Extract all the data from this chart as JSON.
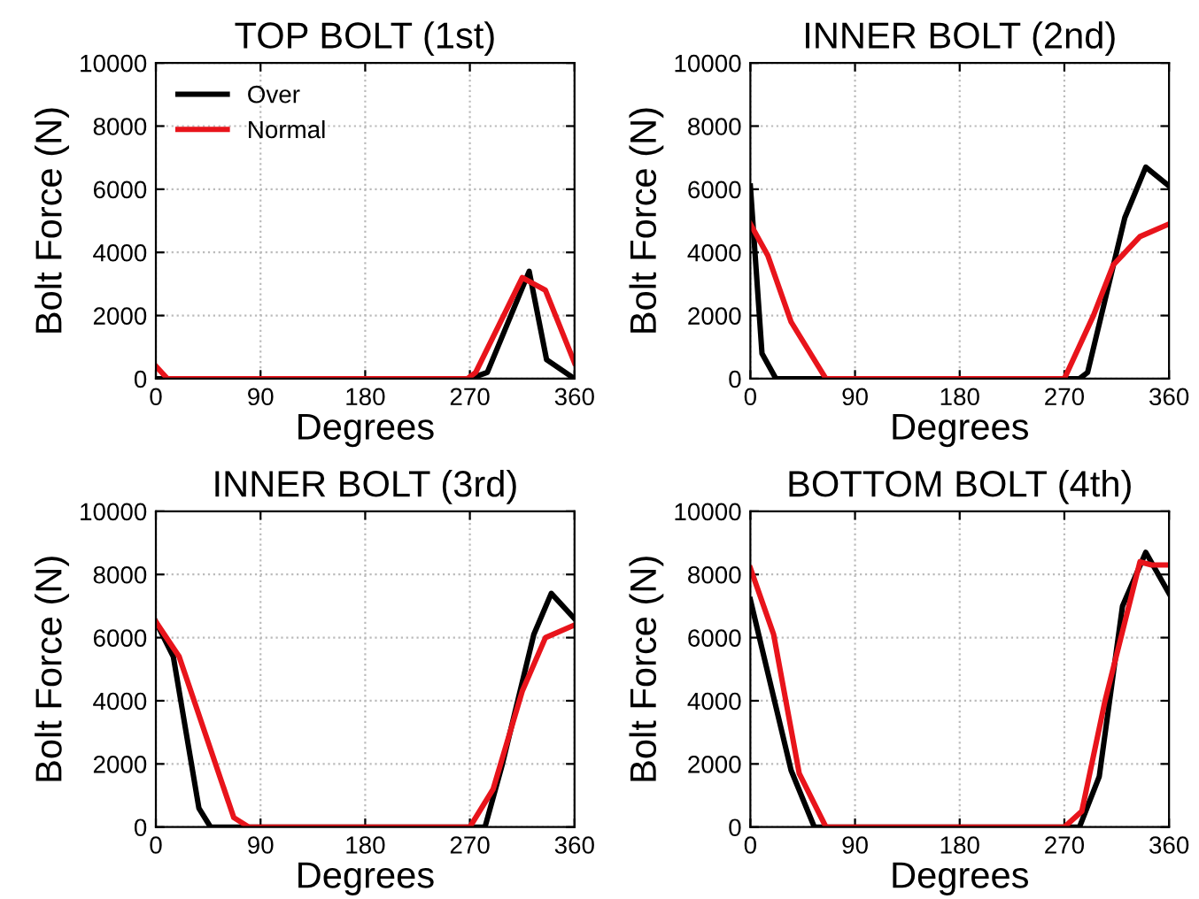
{
  "chart_data": [
    {
      "type": "line",
      "title": "TOP BOLT (1st)",
      "xlabel": "Degrees",
      "ylabel": "Bolt Force (N)",
      "xlim": [
        0,
        360
      ],
      "ylim": [
        0,
        10000
      ],
      "xticks": [
        0,
        90,
        180,
        270,
        360
      ],
      "yticks": [
        0,
        2000,
        4000,
        6000,
        8000,
        10000
      ],
      "grid": true,
      "legend": "top left",
      "line_style": "solid",
      "series": [
        {
          "name": "Over",
          "color": "#000000",
          "x": [
            0,
            270,
            285,
            321,
            336,
            360
          ],
          "values": [
            0,
            0,
            200,
            3400,
            600,
            0
          ]
        },
        {
          "name": "Normal",
          "color": "#e8141b",
          "x": [
            0,
            10,
            268,
            275,
            315,
            325,
            335,
            360
          ],
          "values": [
            400,
            0,
            0,
            200,
            3200,
            3000,
            2800,
            500
          ]
        }
      ]
    },
    {
      "type": "line",
      "title": "INNER BOLT (2nd)",
      "xlabel": "Degrees",
      "ylabel": "Bolt Force (N)",
      "xlim": [
        0,
        360
      ],
      "ylim": [
        0,
        10000
      ],
      "xticks": [
        0,
        90,
        180,
        270,
        360
      ],
      "yticks": [
        0,
        2000,
        4000,
        6000,
        8000,
        10000
      ],
      "grid": true,
      "legend": false,
      "line_style": "solid",
      "series": [
        {
          "color": "#000000",
          "x": [
            0,
            10,
            22,
            283,
            290,
            322,
            340,
            360
          ],
          "values": [
            6100,
            800,
            0,
            0,
            200,
            5100,
            6700,
            6100
          ]
        },
        {
          "color": "#e8141b",
          "x": [
            0,
            15,
            35,
            65,
            270,
            295,
            312,
            335,
            360
          ],
          "values": [
            4900,
            3900,
            1800,
            0,
            0,
            2000,
            3600,
            4500,
            4900
          ]
        }
      ]
    },
    {
      "type": "line",
      "title": "INNER BOLT (3rd)",
      "xlabel": "Degrees",
      "ylabel": "Bolt Force (N)",
      "xlim": [
        0,
        360
      ],
      "ylim": [
        0,
        10000
      ],
      "xticks": [
        0,
        90,
        180,
        270,
        360
      ],
      "yticks": [
        0,
        2000,
        4000,
        6000,
        8000,
        10000
      ],
      "grid": true,
      "legend": false,
      "line_style": "solid",
      "series": [
        {
          "color": "#000000",
          "x": [
            0,
            15,
            37,
            47,
            283,
            298,
            325,
            340,
            360
          ],
          "values": [
            6500,
            5400,
            600,
            0,
            0,
            2000,
            6100,
            7400,
            6600
          ]
        },
        {
          "color": "#e8141b",
          "x": [
            0,
            20,
            67,
            80,
            270,
            290,
            315,
            335,
            360
          ],
          "values": [
            6500,
            5400,
            300,
            0,
            0,
            1200,
            4300,
            6000,
            6400
          ]
        }
      ]
    },
    {
      "type": "line",
      "title": "BOTTOM BOLT (4th)",
      "xlabel": "Degrees",
      "ylabel": "Bolt Force (N)",
      "xlim": [
        0,
        360
      ],
      "ylim": [
        0,
        10000
      ],
      "xticks": [
        0,
        90,
        180,
        270,
        360
      ],
      "yticks": [
        0,
        2000,
        4000,
        6000,
        8000,
        10000
      ],
      "grid": true,
      "legend": false,
      "line_style": "solid",
      "series": [
        {
          "color": "#000000",
          "x": [
            0,
            35,
            55,
            283,
            300,
            320,
            340,
            360
          ],
          "values": [
            7200,
            1800,
            0,
            0,
            1600,
            7000,
            8700,
            7400
          ]
        },
        {
          "color": "#e8141b",
          "x": [
            0,
            20,
            42,
            65,
            270,
            285,
            305,
            335,
            345,
            360
          ],
          "values": [
            8200,
            6100,
            1700,
            0,
            0,
            500,
            4000,
            8400,
            8300,
            8300
          ]
        }
      ]
    }
  ]
}
